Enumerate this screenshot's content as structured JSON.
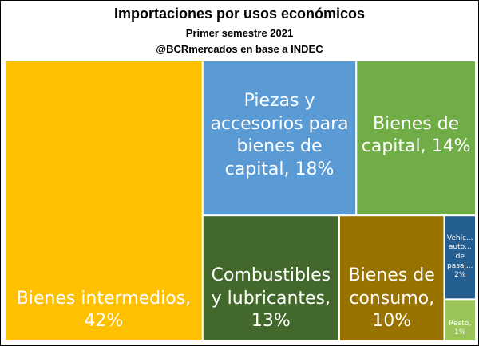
{
  "chart_data": {
    "type": "treemap",
    "title": "Importaciones por usos económicos",
    "subtitle": "Primer semestre 2021",
    "source": "@BCRmercados en base a INDEC",
    "categories": [
      "Bienes intermedios",
      "Piezas y accesorios para bienes de capital",
      "Bienes de capital",
      "Combustibles y lubricantes",
      "Bienes de consumo",
      "Vehículos automotores de pasajeros",
      "Resto"
    ],
    "labels": [
      "Bienes intermedios, 42%",
      "Piezas y accesorios para bienes de capital, 18%",
      "Bienes de capital, 14%",
      "Combustibles y lubricantes, 13%",
      "Bienes de consumo, 10%",
      "Vehíc... auto... de pasaj... 2%",
      "Resto, 1%"
    ],
    "values": [
      42,
      18,
      14,
      13,
      10,
      2,
      1
    ],
    "colors": [
      "#ffc000",
      "#5b9bd5",
      "#70ad47",
      "#43682b",
      "#997300",
      "#255e91",
      "#9bc45a"
    ]
  }
}
